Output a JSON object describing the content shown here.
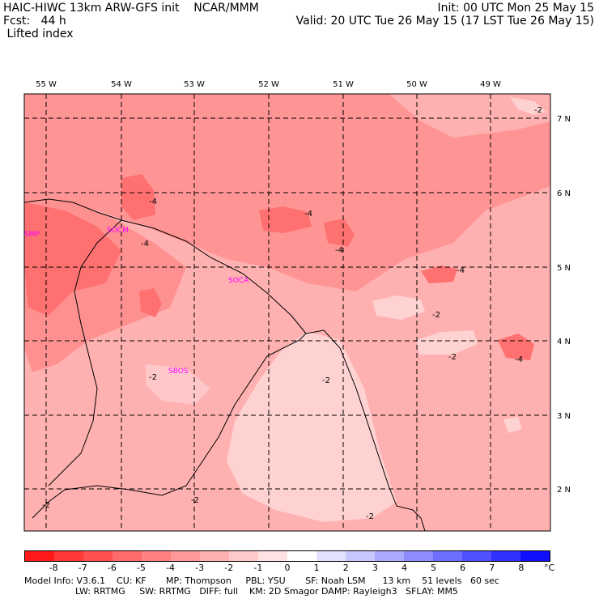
{
  "header": {
    "line1_left": "HAIC-HIWC 13km ARW-GFS init    NCAR/MMM",
    "line2_left": "Fcst:   44 h",
    "line3_left": " Lifted index",
    "line1_right": "Init: 00 UTC Mon 25 May 15",
    "line2_right": "Valid: 20 UTC Tue 26 May 15 (17 LST Tue 26 May 15)"
  },
  "map": {
    "lon_labels": [
      "55 W",
      "54 W",
      "53 W",
      "52 W",
      "51 W",
      "50 W",
      "49 W"
    ],
    "lat_labels": [
      "7 N",
      "6 N",
      "5 N",
      "4 N",
      "3 N",
      "2 N"
    ],
    "places": [
      "SMP",
      "SOCM",
      "SOCA",
      "SBOS"
    ],
    "contour_labels": [
      "-2",
      "-4",
      "-4",
      "-4",
      "-4",
      "-4",
      "-2",
      "-2",
      "-2",
      "-2",
      "-2",
      "-2",
      "-2",
      "-4",
      "-2"
    ]
  },
  "colorbar": {
    "colors": [
      "#ff1a1a",
      "#ff3838",
      "#ff5050",
      "#ff6a6a",
      "#ff8080",
      "#ff9898",
      "#ffb0b0",
      "#ffcaca",
      "#ffe2e2",
      "#ffffff",
      "#e2e2ff",
      "#c8c8ff",
      "#aaaaff",
      "#8c8cff",
      "#6e6eff",
      "#5050ff",
      "#3030ff",
      "#1010ff"
    ],
    "labels": [
      "-8",
      "-7",
      "-6",
      "-5",
      "-4",
      "-3",
      "-2",
      "-1",
      "0",
      "1",
      "2",
      "3",
      "4",
      "5",
      "6",
      "7",
      "8"
    ],
    "unit": "°C"
  },
  "footer": {
    "line1": "Model Info: V3.6.1    CU: KF       MP: Thompson     PBL: YSU       SF: Noah LSM      13 km    51 levels   60 sec",
    "line2": "                  LW: RRTMG     SW: RRTMG   DIFF: full    KM: 2D Smagor DAMP: Rayleigh3   SFLAY: MM5"
  }
}
